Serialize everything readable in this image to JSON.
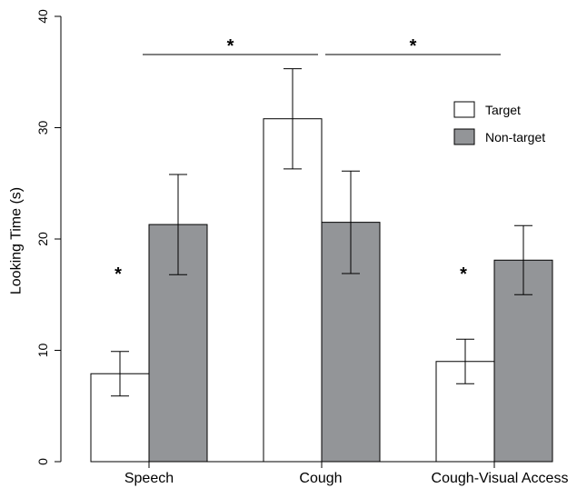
{
  "chart_data": {
    "type": "bar",
    "title": "",
    "xlabel": "",
    "ylabel": "Looking Time (s)",
    "ylim": [
      0,
      40
    ],
    "yticks": [
      0,
      10,
      20,
      30,
      40
    ],
    "categories": [
      "Speech",
      "Cough",
      "Cough-Visual Access"
    ],
    "series": [
      {
        "name": "Target",
        "color": "#ffffff",
        "values": [
          7.9,
          30.8,
          9.0
        ],
        "error": [
          2.0,
          4.5,
          2.0
        ]
      },
      {
        "name": "Non-target",
        "color": "#939598",
        "values": [
          21.3,
          21.5,
          18.1
        ],
        "error": [
          4.5,
          4.6,
          3.1
        ]
      }
    ],
    "legend": {
      "placement": "top-right"
    },
    "significance": {
      "symbol": "*",
      "within_category": [
        0,
        2
      ],
      "brackets": [
        {
          "from": "Speech",
          "to": "Cough"
        },
        {
          "from": "Cough",
          "to": "Cough-Visual Access"
        }
      ]
    },
    "grid": false
  }
}
